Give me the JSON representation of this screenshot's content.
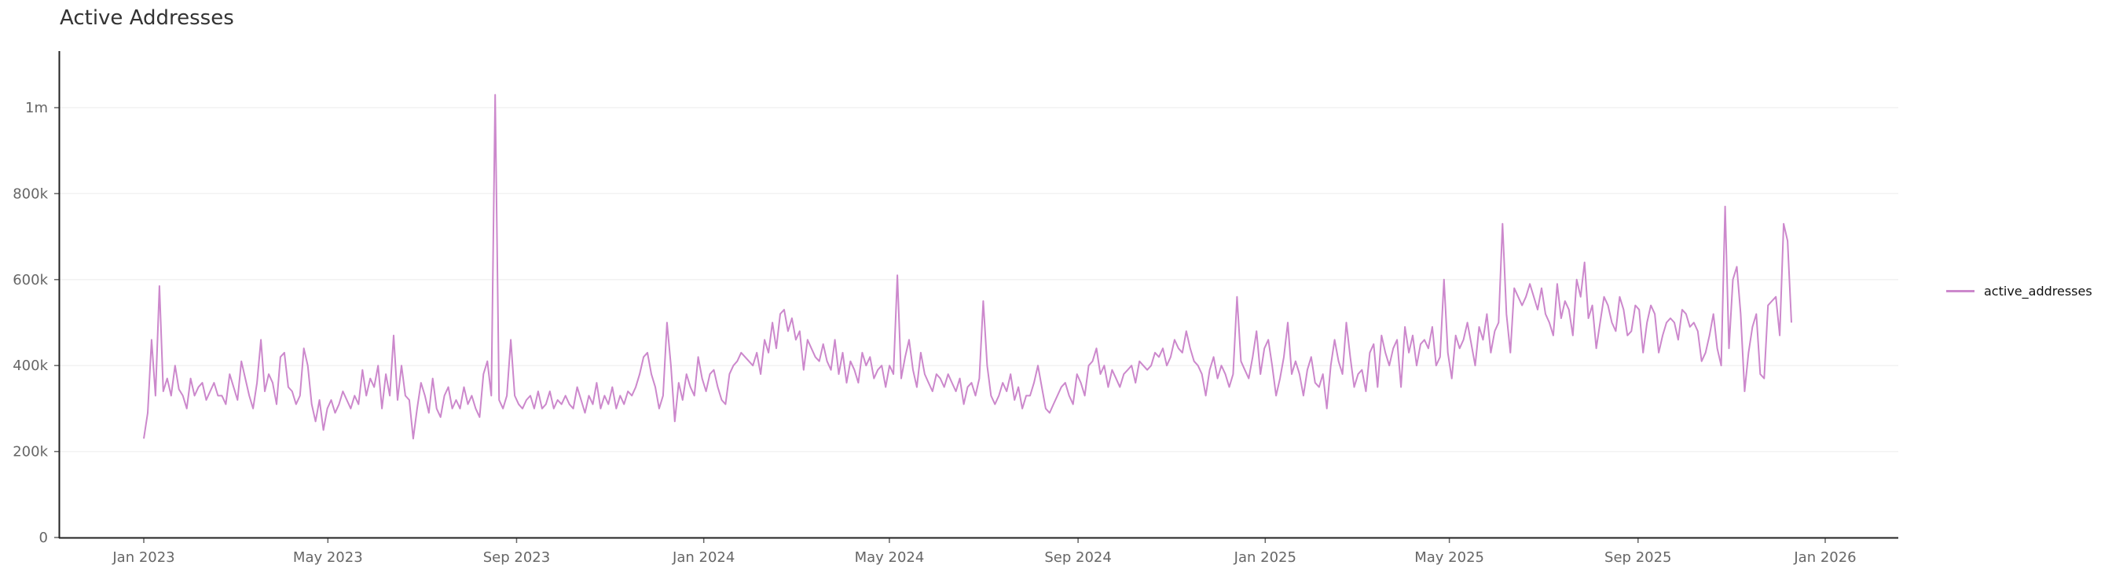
{
  "title": "Active Addresses",
  "legend": {
    "label": "active_addresses",
    "color": "#cc88cc"
  },
  "chart_data": {
    "type": "line",
    "title": "Active Addresses",
    "xlabel": "",
    "ylabel": "",
    "ylim": [
      0,
      1130000
    ],
    "grid": "horizontal",
    "legend_position": "right",
    "y_ticks": [
      {
        "value": 0,
        "label": "0"
      },
      {
        "value": 200000,
        "label": "200k"
      },
      {
        "value": 400000,
        "label": "400k"
      },
      {
        "value": 600000,
        "label": "600k"
      },
      {
        "value": 800000,
        "label": "800k"
      },
      {
        "value": 1000000,
        "label": "1m"
      }
    ],
    "x_ticks": [
      {
        "day": 0,
        "label": "Jan 2023"
      },
      {
        "day": 120,
        "label": "May 2023"
      },
      {
        "day": 243,
        "label": "Sep 2023"
      },
      {
        "day": 365,
        "label": "Jan 2024"
      },
      {
        "day": 486,
        "label": "May 2024"
      },
      {
        "day": 609,
        "label": "Sep 2024"
      },
      {
        "day": 731,
        "label": "Jan 2025"
      },
      {
        "day": 851,
        "label": "May 2025"
      },
      {
        "day": 974,
        "label": "Sep 2025"
      },
      {
        "day": 1096,
        "label": "Jan 2026"
      }
    ],
    "x_range_days": [
      -55,
      1144
    ],
    "series": [
      {
        "name": "active_addresses",
        "color": "#cc88cc",
        "start": "2023-01-01",
        "step_days": 4,
        "values_k": [
          230,
          290,
          460,
          330,
          585,
          340,
          370,
          330,
          400,
          345,
          330,
          300,
          370,
          330,
          350,
          360,
          320,
          340,
          360,
          330,
          330,
          310,
          380,
          350,
          320,
          410,
          370,
          330,
          300,
          360,
          460,
          340,
          380,
          360,
          310,
          420,
          430,
          350,
          340,
          310,
          330,
          440,
          400,
          310,
          270,
          320,
          250,
          300,
          320,
          290,
          310,
          340,
          320,
          300,
          330,
          310,
          390,
          330,
          370,
          350,
          400,
          300,
          380,
          330,
          470,
          320,
          400,
          330,
          320,
          230,
          300,
          360,
          330,
          290,
          370,
          300,
          280,
          330,
          350,
          300,
          320,
          300,
          350,
          310,
          330,
          300,
          280,
          380,
          410,
          330,
          1030,
          320,
          300,
          330,
          460,
          330,
          310,
          300,
          320,
          330,
          300,
          340,
          300,
          310,
          340,
          300,
          320,
          310,
          330,
          310,
          300,
          350,
          320,
          290,
          330,
          310,
          360,
          300,
          330,
          310,
          350,
          300,
          330,
          310,
          340,
          330,
          350,
          380,
          420,
          430,
          380,
          350,
          300,
          330,
          500,
          400,
          270,
          360,
          320,
          380,
          350,
          330,
          420,
          370,
          340,
          380,
          390,
          350,
          320,
          310,
          380,
          400,
          410,
          430,
          420,
          410,
          400,
          430,
          380,
          460,
          430,
          500,
          440,
          520,
          530,
          480,
          510,
          460,
          480,
          390,
          460,
          440,
          420,
          410,
          450,
          410,
          390,
          460,
          380,
          430,
          360,
          410,
          390,
          360,
          430,
          400,
          420,
          370,
          390,
          400,
          350,
          400,
          380,
          610,
          370,
          420,
          460,
          390,
          350,
          430,
          380,
          360,
          340,
          380,
          370,
          350,
          380,
          360,
          340,
          370,
          310,
          350,
          360,
          330,
          370,
          550,
          400,
          330,
          310,
          330,
          360,
          340,
          380,
          320,
          350,
          300,
          330,
          330,
          360,
          400,
          350,
          300,
          290,
          310,
          330,
          350,
          360,
          330,
          310,
          380,
          360,
          330,
          400,
          410,
          440,
          380,
          400,
          350,
          390,
          370,
          350,
          380,
          390,
          400,
          360,
          410,
          400,
          390,
          400,
          430,
          420,
          440,
          400,
          420,
          460,
          440,
          430,
          480,
          440,
          410,
          400,
          380,
          330,
          390,
          420,
          370,
          400,
          380,
          350,
          380,
          560,
          410,
          390,
          370,
          420,
          480,
          380,
          440,
          460,
          400,
          330,
          370,
          420,
          500,
          380,
          410,
          380,
          330,
          390,
          420,
          360,
          350,
          380,
          300,
          400,
          460,
          410,
          380,
          500,
          420,
          350,
          380,
          390,
          340,
          430,
          450,
          350,
          470,
          430,
          400,
          440,
          460,
          350,
          490,
          430,
          470,
          400,
          450,
          460,
          440,
          490,
          400,
          420,
          600,
          430,
          370,
          470,
          440,
          460,
          500,
          450,
          400,
          490,
          460,
          520,
          430,
          480,
          500,
          730,
          520,
          430,
          580,
          560,
          540,
          560,
          590,
          560,
          530,
          580,
          520,
          500,
          470,
          590,
          510,
          550,
          530,
          470,
          600,
          560,
          640,
          510,
          540,
          440,
          500,
          560,
          540,
          500,
          480,
          560,
          530,
          470,
          480,
          540,
          530,
          430,
          500,
          540,
          520,
          430,
          470,
          500,
          510,
          500,
          460,
          530,
          520,
          490,
          500,
          480,
          410,
          430,
          470,
          520,
          440,
          400,
          770,
          440,
          600,
          630,
          520,
          340,
          430,
          490,
          520,
          380,
          370,
          540,
          550,
          560,
          470,
          730,
          690,
          500
        ]
      }
    ]
  }
}
